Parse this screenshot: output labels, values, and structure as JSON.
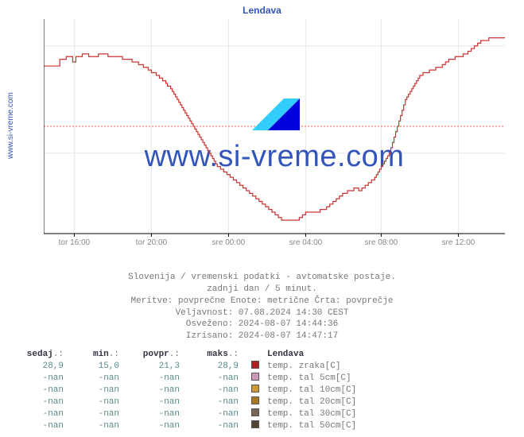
{
  "site": {
    "side_label": "www.si-vreme.com"
  },
  "chart": {
    "title": "Lendava",
    "type": "line-step",
    "background_color": "#ffffff",
    "grid_color": "#e8e8e8",
    "axis_color": "#000000",
    "series_color": "#cc3333",
    "ref_line": {
      "y": 22,
      "color": "#ff5566"
    },
    "ylim": [
      14,
      30
    ],
    "yticks": [
      20,
      28
    ],
    "xticks": [
      "tor 16:00",
      "tor 20:00",
      "sre 00:00",
      "sre 04:00",
      "sre 08:00",
      "sre 12:00"
    ],
    "x_count": 288,
    "series_y": [
      26.5,
      26.5,
      26.5,
      26.5,
      26.5,
      26.5,
      26.5,
      26.5,
      26.5,
      26.5,
      27.0,
      27.0,
      27.0,
      27.0,
      27.2,
      27.2,
      27.2,
      27.2,
      26.8,
      26.8,
      27.2,
      27.2,
      27.2,
      27.2,
      27.4,
      27.4,
      27.4,
      27.4,
      27.2,
      27.2,
      27.2,
      27.2,
      27.2,
      27.2,
      27.4,
      27.4,
      27.4,
      27.4,
      27.4,
      27.4,
      27.2,
      27.2,
      27.2,
      27.2,
      27.2,
      27.2,
      27.2,
      27.2,
      27.2,
      27.0,
      27.0,
      27.0,
      27.0,
      27.0,
      27.0,
      26.8,
      26.8,
      26.8,
      26.8,
      26.6,
      26.6,
      26.6,
      26.4,
      26.4,
      26.4,
      26.2,
      26.2,
      26.0,
      26.0,
      26.0,
      25.8,
      25.8,
      25.6,
      25.6,
      25.4,
      25.4,
      25.2,
      25.0,
      25.0,
      24.8,
      24.6,
      24.4,
      24.2,
      24.0,
      23.8,
      23.6,
      23.4,
      23.2,
      23.0,
      22.8,
      22.6,
      22.4,
      22.2,
      22.0,
      21.8,
      21.6,
      21.4,
      21.2,
      21.0,
      20.8,
      20.6,
      20.4,
      20.2,
      20.0,
      19.8,
      19.6,
      19.4,
      19.2,
      19.0,
      19.0,
      18.8,
      18.8,
      18.6,
      18.6,
      18.4,
      18.4,
      18.2,
      18.2,
      18.0,
      18.0,
      17.8,
      17.8,
      17.6,
      17.6,
      17.4,
      17.4,
      17.2,
      17.2,
      17.0,
      17.0,
      16.8,
      16.8,
      16.6,
      16.6,
      16.4,
      16.4,
      16.2,
      16.2,
      16.0,
      16.0,
      15.8,
      15.8,
      15.6,
      15.6,
      15.4,
      15.4,
      15.2,
      15.2,
      15.0,
      15.0,
      15.0,
      15.0,
      15.0,
      15.0,
      15.0,
      15.0,
      15.0,
      15.0,
      15.0,
      15.2,
      15.2,
      15.4,
      15.4,
      15.6,
      15.6,
      15.6,
      15.6,
      15.6,
      15.6,
      15.6,
      15.6,
      15.6,
      15.8,
      15.8,
      15.8,
      15.8,
      16.0,
      16.0,
      16.2,
      16.2,
      16.4,
      16.4,
      16.6,
      16.6,
      16.8,
      16.8,
      17.0,
      17.0,
      17.0,
      17.2,
      17.2,
      17.2,
      17.2,
      17.4,
      17.4,
      17.4,
      17.2,
      17.2,
      17.4,
      17.4,
      17.6,
      17.6,
      17.8,
      17.8,
      18.0,
      18.0,
      18.2,
      18.4,
      18.6,
      18.8,
      19.0,
      19.2,
      19.4,
      19.6,
      19.8,
      20.0,
      20.4,
      20.8,
      21.2,
      21.6,
      22.0,
      22.4,
      22.8,
      23.2,
      23.6,
      24.0,
      24.2,
      24.4,
      24.6,
      24.8,
      25.0,
      25.2,
      25.4,
      25.6,
      25.8,
      25.8,
      26.0,
      26.0,
      26.0,
      26.0,
      26.2,
      26.2,
      26.2,
      26.2,
      26.4,
      26.4,
      26.4,
      26.4,
      26.6,
      26.6,
      26.8,
      26.8,
      27.0,
      27.0,
      27.0,
      27.0,
      27.2,
      27.2,
      27.2,
      27.2,
      27.2,
      27.4,
      27.4,
      27.4,
      27.6,
      27.6,
      27.8,
      27.8,
      28.0,
      28.0,
      28.2,
      28.2,
      28.4,
      28.4,
      28.4,
      28.4,
      28.4,
      28.6,
      28.6,
      28.6,
      28.6,
      28.6,
      28.6,
      28.6,
      28.6,
      28.6,
      28.6,
      28.6
    ],
    "watermark": {
      "text": "www.si-vreme.com",
      "text_color": "#3355bb",
      "logo_colors": [
        "#ffff00",
        "#33ccff",
        "#0000dd"
      ]
    }
  },
  "caption": {
    "line1": "Slovenija / vremenski podatki - avtomatske postaje.",
    "line2": "zadnji dan / 5 minut.",
    "line3": "Meritve: povprečne  Enote: metrične  Črta: povprečje",
    "line4": "Veljavnost: 07.08.2024 14:30 CEST",
    "line5": "Osveženo: 2024-08-07 14:44:36",
    "line6": "Izrisano: 2024-08-07 14:47:17"
  },
  "table": {
    "headers": {
      "sedaj": "sedaj",
      "min": "min",
      "povpr": "povpr",
      "maks": "maks",
      "station": "Lendava",
      "suffix": ".:"
    },
    "rows": [
      {
        "sedaj": "28,9",
        "min": "15,0",
        "povpr": "21,3",
        "maks": "28,9",
        "swatch": "#aa2222",
        "label": "temp. zraka[C]"
      },
      {
        "sedaj": "-nan",
        "min": "-nan",
        "povpr": "-nan",
        "maks": "-nan",
        "swatch": "#cc99bb",
        "label": "temp. tal  5cm[C]"
      },
      {
        "sedaj": "-nan",
        "min": "-nan",
        "povpr": "-nan",
        "maks": "-nan",
        "swatch": "#cc9933",
        "label": "temp. tal 10cm[C]"
      },
      {
        "sedaj": "-nan",
        "min": "-nan",
        "povpr": "-nan",
        "maks": "-nan",
        "swatch": "#aa7722",
        "label": "temp. tal 20cm[C]"
      },
      {
        "sedaj": "-nan",
        "min": "-nan",
        "povpr": "-nan",
        "maks": "-nan",
        "swatch": "#776655",
        "label": "temp. tal 30cm[C]"
      },
      {
        "sedaj": "-nan",
        "min": "-nan",
        "povpr": "-nan",
        "maks": "-nan",
        "swatch": "#554433",
        "label": "temp. tal 50cm[C]"
      }
    ]
  }
}
